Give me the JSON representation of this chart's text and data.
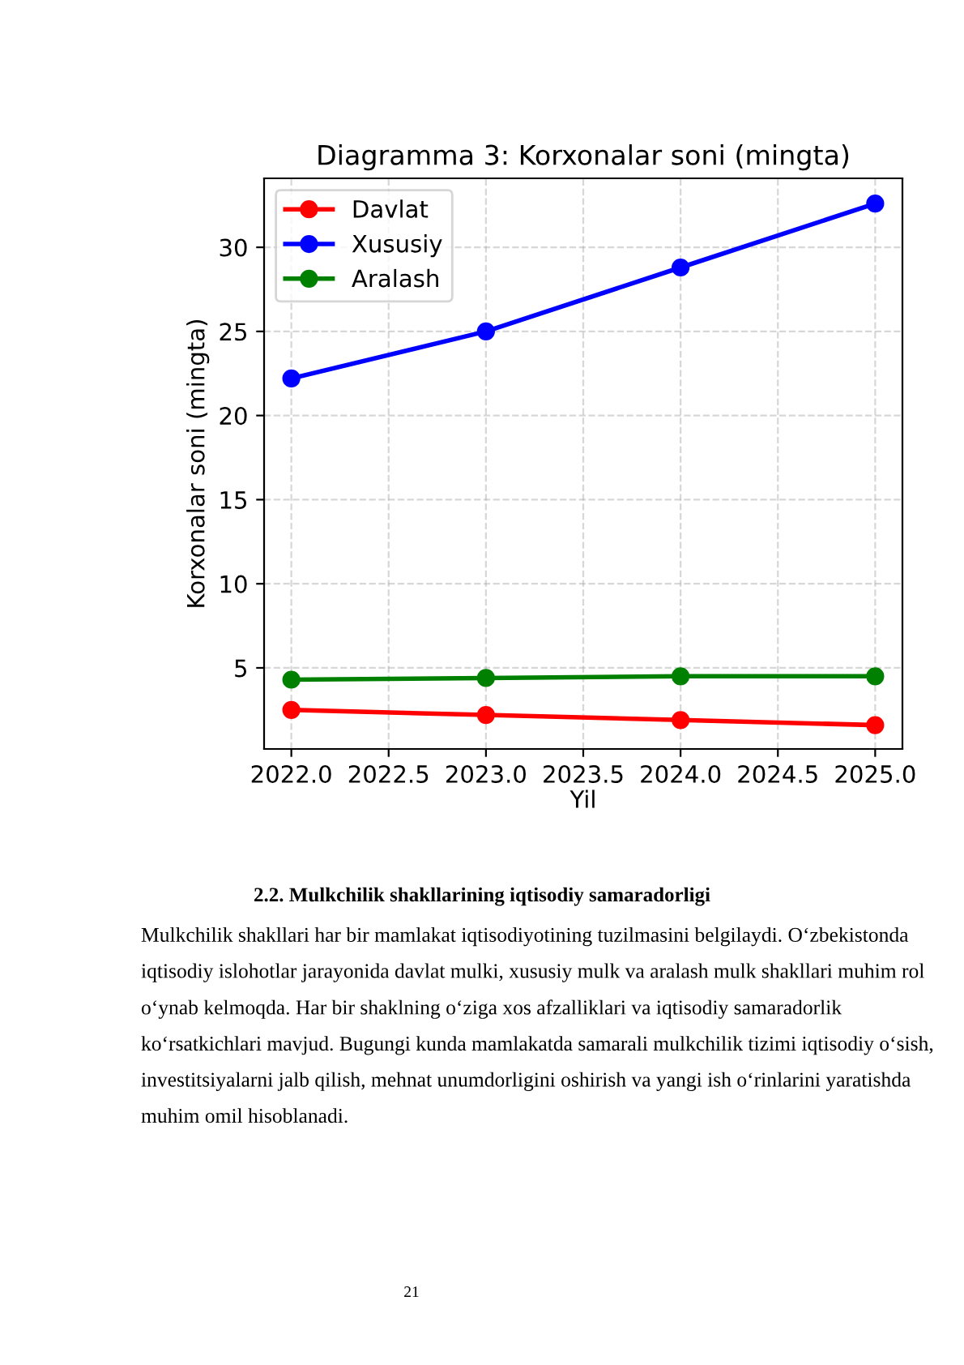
{
  "chart_data": {
    "type": "line",
    "title": "Diagramma 3: Korxonalar soni (mingta)",
    "xlabel": "Yil",
    "ylabel": "Korxonalar soni (mingta)",
    "x": [
      2022,
      2023,
      2024,
      2025
    ],
    "series": [
      {
        "name": "Davlat",
        "color": "#ff0000",
        "values": [
          2.5,
          2.2,
          1.9,
          1.6
        ]
      },
      {
        "name": "Xususiy",
        "color": "#0000ff",
        "values": [
          22.2,
          25.0,
          28.8,
          32.6
        ]
      },
      {
        "name": "Aralash",
        "color": "#008000",
        "values": [
          4.3,
          4.4,
          4.5,
          4.5
        ]
      }
    ],
    "xlim": [
      2021.86,
      2025.14
    ],
    "ylim": [
      0.18,
      34.1
    ],
    "xticks": [
      {
        "value": 2022,
        "label": "2022.0"
      },
      {
        "value": 2022.5,
        "label": "2022.5"
      },
      {
        "value": 2023,
        "label": "2023.0"
      },
      {
        "value": 2023.5,
        "label": "2023.5"
      },
      {
        "value": 2024,
        "label": "2024.0"
      },
      {
        "value": 2024.5,
        "label": "2024.5"
      },
      {
        "value": 2025,
        "label": "2025.0"
      }
    ],
    "yticks": [
      5,
      10,
      15,
      20,
      25,
      30
    ],
    "grid": true,
    "legend": "top left",
    "marker": "circle",
    "line_style": "solid",
    "annotations": [
      "2.2. Mulkchilik shakllarining iqtisodiy samaradorligi",
      "Mulkchilik shakllari har bir mamlakat iqtisodiyotining tuzilmasini belgilaydi. O‘zbekistonda iqtisodiy islohotlar jarayonida davlat mulki, xususiy mulk va aralash mulk shakllari muhim rol o‘ynab kelmoqda. Har bir shaklning o‘ziga xos afzalliklari va iqtisodiy samaradorlik ko‘rsatkichlari mavjud. Bugungi kunda mamlakatda samarali mulkchilik tizimi iqtisodiy o‘sish, investitsiyalarni jalb qilish, mehnat unumdorligini oshirish va yangi ish o‘rinlarini yaratishda muhim omil hisoblanadi.",
      "21"
    ]
  }
}
